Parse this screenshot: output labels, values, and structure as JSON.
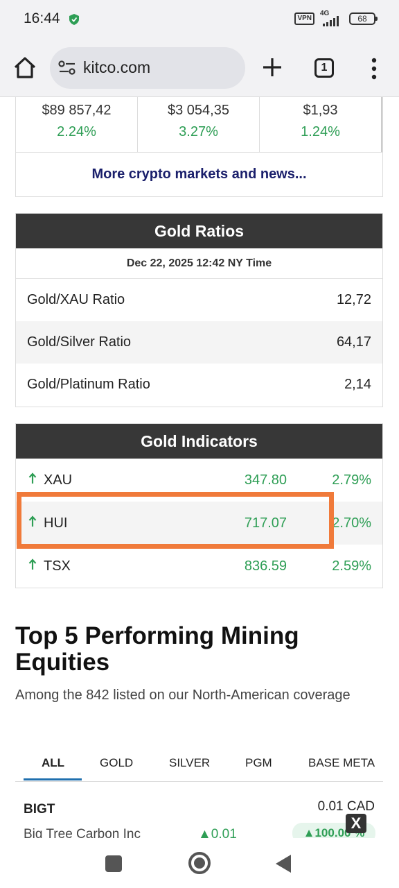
{
  "status_bar": {
    "time": "16:44",
    "vpn": "VPN",
    "network": "4G",
    "battery": "68"
  },
  "browser": {
    "url": "kitco.com",
    "tab_count": "1"
  },
  "crypto": {
    "items": [
      {
        "price": "$89 857,42",
        "change": "2.24%"
      },
      {
        "price": "$3 054,35",
        "change": "3.27%"
      },
      {
        "price": "$1,93",
        "change": "1.24%"
      }
    ],
    "more_link": "More crypto markets and news..."
  },
  "gold_ratios": {
    "title": "Gold Ratios",
    "timestamp": "Dec 22, 2025 12:42 NY Time",
    "rows": [
      {
        "label": "Gold/XAU Ratio",
        "value": "12,72"
      },
      {
        "label": "Gold/Silver Ratio",
        "value": "64,17"
      },
      {
        "label": "Gold/Platinum Ratio",
        "value": "2,14"
      }
    ]
  },
  "gold_indicators": {
    "title": "Gold Indicators",
    "rows": [
      {
        "name": "XAU",
        "value": "347.80",
        "change": "2.79%"
      },
      {
        "name": "HUI",
        "value": "717.07",
        "change": "2.70%"
      },
      {
        "name": "TSX",
        "value": "836.59",
        "change": "2.59%"
      }
    ]
  },
  "top5": {
    "title": "Top 5 Performing Mining Equities",
    "subtitle": "Among the 842 listed on our North-American coverage",
    "tabs": [
      "ALL",
      "GOLD",
      "SILVER",
      "PGM",
      "BASE META"
    ],
    "first_row": {
      "ticker": "BIGT",
      "price": "0.01 CAD",
      "name": "Big Tree Carbon Inc",
      "change": "▲0.01",
      "percent": "▲100.00 %"
    }
  },
  "ad_close": "X",
  "colors": {
    "positive": "#2e9e55",
    "header_bg": "#373737",
    "highlight": "#f07a3a",
    "link": "#1a1f6b",
    "tab_underline": "#1f6fae"
  }
}
